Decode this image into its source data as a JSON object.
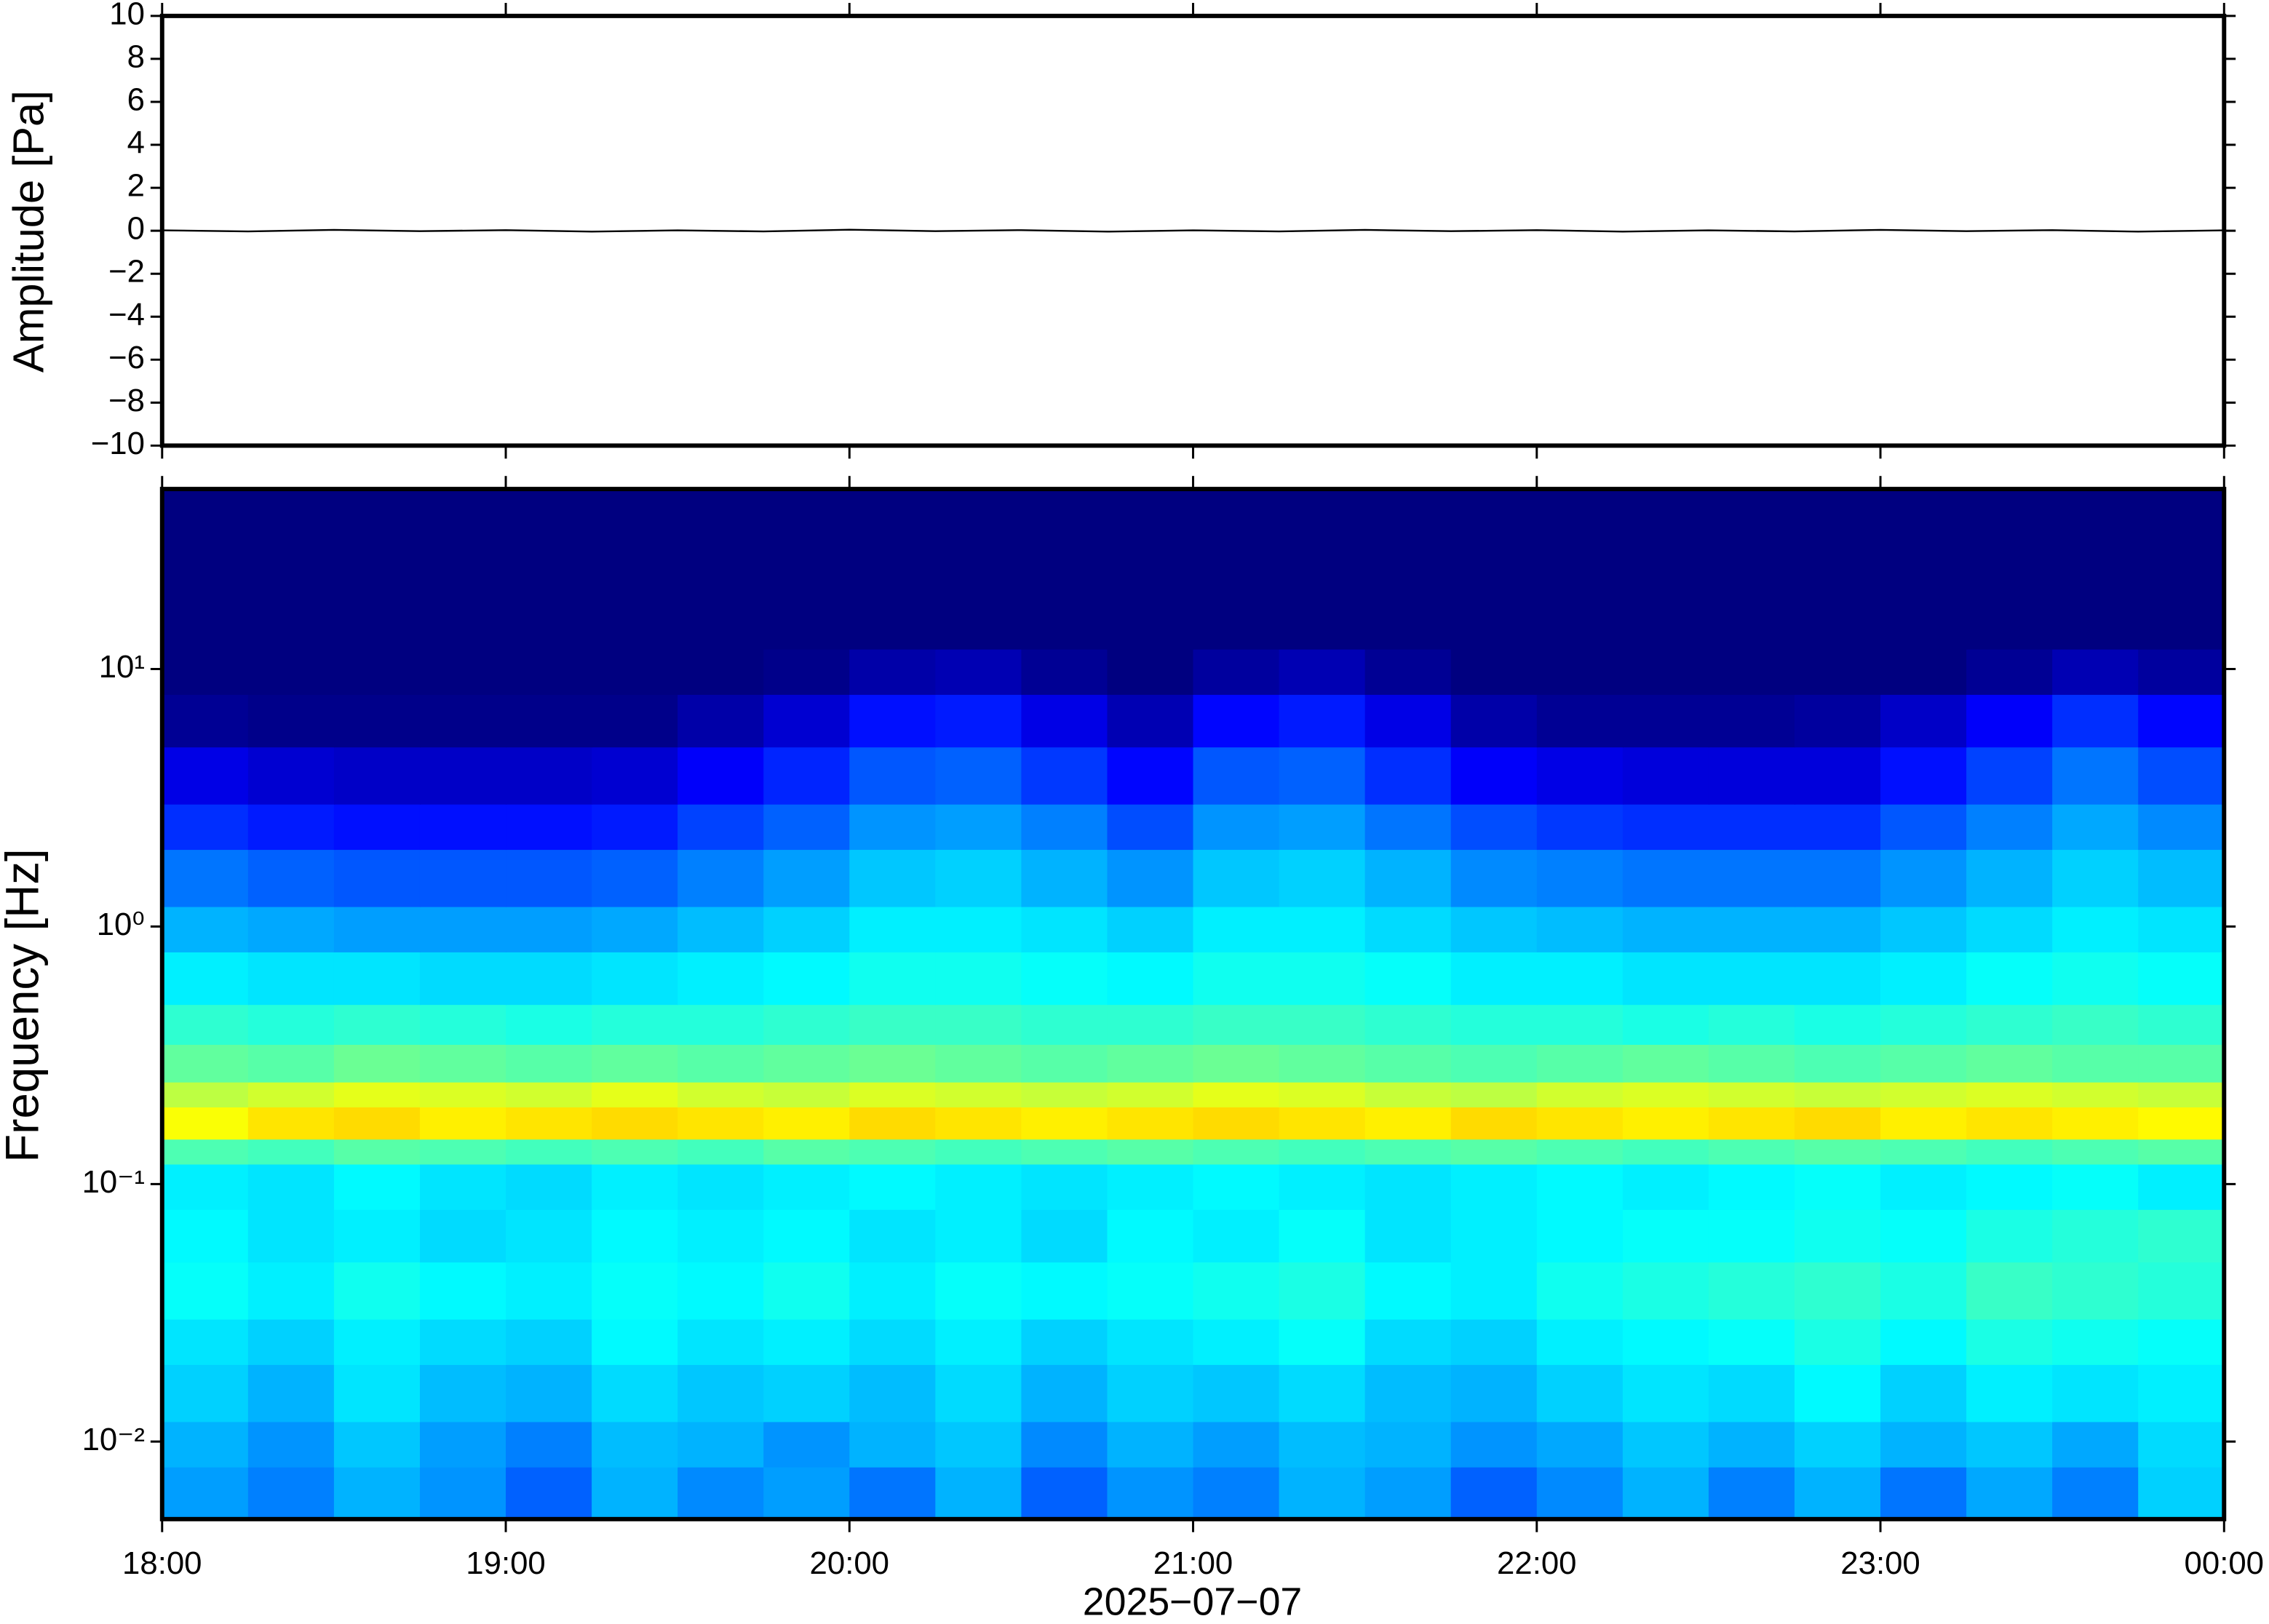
{
  "chart_data": [
    {
      "type": "line",
      "ylabel": "Amplitude [Pa]",
      "x": [
        18,
        18.25,
        18.5,
        18.75,
        19,
        19.25,
        19.5,
        19.75,
        20,
        20.25,
        20.5,
        20.75,
        21,
        21.25,
        21.5,
        21.75,
        22,
        22.25,
        22.5,
        22.75,
        23,
        23.25,
        23.5,
        23.75,
        24
      ],
      "series": [
        {
          "color": "#000000",
          "values": [
            0.02,
            -0.03,
            0.04,
            -0.02,
            0.03,
            -0.04,
            0.02,
            -0.03,
            0.05,
            -0.02,
            0.03,
            -0.04,
            0.02,
            -0.03,
            0.04,
            -0.02,
            0.03,
            -0.04,
            0.02,
            -0.03,
            0.04,
            -0.02,
            0.03,
            -0.04,
            0.02
          ]
        }
      ],
      "xlim": [
        18,
        24
      ],
      "xticks": [
        {
          "value": 18,
          "label": "18:00"
        },
        {
          "value": 19,
          "label": "19:00"
        },
        {
          "value": 20,
          "label": "20:00"
        },
        {
          "value": 21,
          "label": "21:00"
        },
        {
          "value": 22,
          "label": "22:00"
        },
        {
          "value": 23,
          "label": "23:00"
        },
        {
          "value": 24,
          "label": "00:00"
        }
      ],
      "ylim": [
        -10,
        10
      ],
      "yticks": [
        {
          "value": -10,
          "label": "−10"
        },
        {
          "value": -8,
          "label": "−8"
        },
        {
          "value": -6,
          "label": "−6"
        },
        {
          "value": -4,
          "label": "−4"
        },
        {
          "value": -2,
          "label": "−2"
        },
        0,
        2,
        4,
        6,
        8,
        10
      ]
    },
    {
      "type": "heatmap",
      "ylabel": "Frequency [Hz]",
      "xlabel": "2025−07−07",
      "log_y": true,
      "colormap": "jet",
      "clim": [
        0,
        1
      ],
      "xbins": [
        18,
        18.25,
        18.5,
        18.75,
        19,
        19.25,
        19.5,
        19.75,
        20,
        20.25,
        20.5,
        20.75,
        21,
        21.25,
        21.5,
        21.75,
        22,
        22.25,
        22.5,
        22.75,
        23,
        23.25,
        23.5,
        23.75,
        24
      ],
      "ybins": [
        0.005,
        0.008,
        0.012,
        0.02,
        0.03,
        0.05,
        0.08,
        0.12,
        0.15,
        0.2,
        0.25,
        0.35,
        0.5,
        0.8,
        1.2,
        2,
        3,
        5,
        8,
        12,
        50
      ],
      "values": [
        [
          0.28,
          0.25,
          0.3,
          0.27,
          0.22,
          0.3,
          0.26,
          0.28,
          0.24,
          0.3,
          0.22,
          0.27,
          0.25,
          0.3,
          0.28,
          0.22,
          0.26,
          0.3,
          0.25,
          0.3,
          0.24,
          0.29,
          0.25,
          0.33
        ],
        [
          0.3,
          0.27,
          0.32,
          0.28,
          0.25,
          0.31,
          0.3,
          0.27,
          0.3,
          0.32,
          0.26,
          0.3,
          0.28,
          0.31,
          0.3,
          0.27,
          0.29,
          0.32,
          0.3,
          0.33,
          0.3,
          0.32,
          0.29,
          0.34
        ],
        [
          0.33,
          0.3,
          0.35,
          0.31,
          0.3,
          0.34,
          0.32,
          0.33,
          0.31,
          0.34,
          0.3,
          0.33,
          0.32,
          0.34,
          0.31,
          0.3,
          0.33,
          0.35,
          0.34,
          0.37,
          0.33,
          0.36,
          0.35,
          0.36
        ],
        [
          0.35,
          0.33,
          0.36,
          0.34,
          0.33,
          0.37,
          0.35,
          0.36,
          0.34,
          0.36,
          0.33,
          0.35,
          0.36,
          0.38,
          0.34,
          0.33,
          0.36,
          0.37,
          0.38,
          0.4,
          0.37,
          0.4,
          0.39,
          0.38
        ],
        [
          0.38,
          0.36,
          0.39,
          0.37,
          0.36,
          0.38,
          0.37,
          0.39,
          0.36,
          0.38,
          0.37,
          0.38,
          0.39,
          0.4,
          0.37,
          0.36,
          0.39,
          0.4,
          0.41,
          0.42,
          0.4,
          0.43,
          0.42,
          0.41
        ],
        [
          0.37,
          0.35,
          0.36,
          0.34,
          0.35,
          0.37,
          0.36,
          0.37,
          0.35,
          0.36,
          0.34,
          0.37,
          0.36,
          0.38,
          0.35,
          0.36,
          0.37,
          0.38,
          0.38,
          0.39,
          0.38,
          0.4,
          0.41,
          0.42
        ],
        [
          0.36,
          0.35,
          0.37,
          0.35,
          0.34,
          0.36,
          0.35,
          0.36,
          0.37,
          0.36,
          0.35,
          0.36,
          0.37,
          0.36,
          0.35,
          0.36,
          0.37,
          0.36,
          0.37,
          0.38,
          0.36,
          0.37,
          0.38,
          0.36
        ],
        [
          0.45,
          0.44,
          0.46,
          0.45,
          0.44,
          0.45,
          0.44,
          0.46,
          0.45,
          0.44,
          0.45,
          0.46,
          0.45,
          0.44,
          0.45,
          0.46,
          0.45,
          0.44,
          0.45,
          0.46,
          0.45,
          0.44,
          0.45,
          0.46
        ],
        [
          0.62,
          0.65,
          0.66,
          0.64,
          0.65,
          0.66,
          0.65,
          0.64,
          0.66,
          0.65,
          0.64,
          0.65,
          0.66,
          0.65,
          0.64,
          0.66,
          0.65,
          0.64,
          0.65,
          0.66,
          0.64,
          0.65,
          0.64,
          0.63
        ],
        [
          0.56,
          0.58,
          0.6,
          0.59,
          0.58,
          0.6,
          0.58,
          0.57,
          0.59,
          0.58,
          0.57,
          0.58,
          0.6,
          0.59,
          0.57,
          0.56,
          0.58,
          0.59,
          0.58,
          0.57,
          0.58,
          0.59,
          0.58,
          0.57
        ],
        [
          0.47,
          0.46,
          0.48,
          0.47,
          0.46,
          0.47,
          0.46,
          0.47,
          0.48,
          0.47,
          0.46,
          0.47,
          0.48,
          0.47,
          0.46,
          0.45,
          0.46,
          0.47,
          0.46,
          0.45,
          0.46,
          0.47,
          0.46,
          0.46
        ],
        [
          0.42,
          0.41,
          0.42,
          0.41,
          0.4,
          0.41,
          0.41,
          0.42,
          0.43,
          0.43,
          0.42,
          0.42,
          0.43,
          0.43,
          0.42,
          0.41,
          0.41,
          0.4,
          0.41,
          0.4,
          0.41,
          0.42,
          0.43,
          0.42
        ],
        [
          0.36,
          0.35,
          0.35,
          0.34,
          0.34,
          0.35,
          0.36,
          0.37,
          0.39,
          0.39,
          0.38,
          0.37,
          0.39,
          0.39,
          0.38,
          0.36,
          0.36,
          0.35,
          0.35,
          0.35,
          0.36,
          0.38,
          0.39,
          0.38
        ],
        [
          0.3,
          0.29,
          0.28,
          0.28,
          0.28,
          0.29,
          0.31,
          0.33,
          0.36,
          0.36,
          0.35,
          0.33,
          0.36,
          0.36,
          0.34,
          0.32,
          0.31,
          0.3,
          0.3,
          0.3,
          0.32,
          0.34,
          0.36,
          0.35
        ],
        [
          0.24,
          0.22,
          0.21,
          0.21,
          0.21,
          0.22,
          0.25,
          0.28,
          0.32,
          0.33,
          0.3,
          0.27,
          0.32,
          0.33,
          0.3,
          0.26,
          0.25,
          0.24,
          0.24,
          0.24,
          0.27,
          0.3,
          0.33,
          0.31
        ],
        [
          0.17,
          0.15,
          0.14,
          0.14,
          0.14,
          0.15,
          0.19,
          0.22,
          0.27,
          0.28,
          0.25,
          0.2,
          0.27,
          0.28,
          0.24,
          0.2,
          0.18,
          0.17,
          0.17,
          0.17,
          0.21,
          0.25,
          0.29,
          0.26
        ],
        [
          0.1,
          0.08,
          0.07,
          0.07,
          0.07,
          0.08,
          0.12,
          0.16,
          0.21,
          0.22,
          0.18,
          0.13,
          0.21,
          0.22,
          0.17,
          0.12,
          0.1,
          0.09,
          0.09,
          0.09,
          0.14,
          0.19,
          0.24,
          0.2
        ],
        [
          0.02,
          0.01,
          0.01,
          0.01,
          0.01,
          0.01,
          0.04,
          0.08,
          0.14,
          0.15,
          0.1,
          0.05,
          0.13,
          0.15,
          0.1,
          0.04,
          0.02,
          0.02,
          0.02,
          0.03,
          0.07,
          0.12,
          0.17,
          0.13
        ],
        [
          0,
          0,
          0,
          0,
          0,
          0,
          0,
          0.01,
          0.04,
          0.05,
          0.02,
          0,
          0.03,
          0.05,
          0.02,
          0,
          0,
          0,
          0,
          0,
          0,
          0.02,
          0.05,
          0.03
        ],
        [
          0,
          0,
          0,
          0,
          0,
          0,
          0,
          0,
          0,
          0,
          0,
          0,
          0,
          0,
          0,
          0,
          0,
          0,
          0,
          0,
          0,
          0,
          0,
          0
        ]
      ],
      "xlim": [
        18,
        24
      ],
      "xticks": [
        {
          "value": 18,
          "label": "18:00"
        },
        {
          "value": 19,
          "label": "19:00"
        },
        {
          "value": 20,
          "label": "20:00"
        },
        {
          "value": 21,
          "label": "21:00"
        },
        {
          "value": 22,
          "label": "22:00"
        },
        {
          "value": 23,
          "label": "23:00"
        },
        {
          "value": 24,
          "label": "00:00"
        }
      ],
      "ylim": [
        0.005,
        50
      ],
      "yticks": [
        {
          "value": 0.01,
          "label": "10⁻²"
        },
        {
          "value": 0.1,
          "label": "10⁻¹"
        },
        {
          "value": 1,
          "label": "10⁰"
        },
        {
          "value": 10,
          "label": "10¹"
        }
      ]
    }
  ]
}
